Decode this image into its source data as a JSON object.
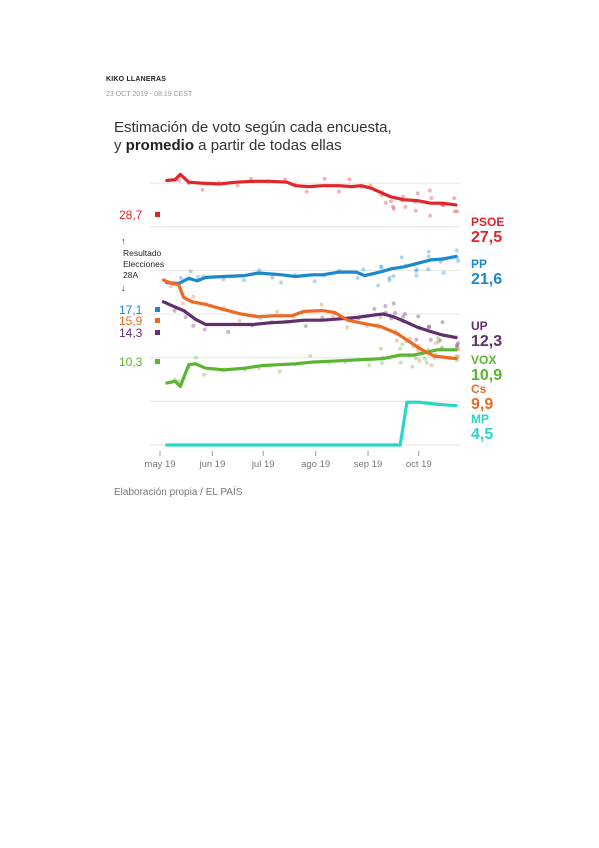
{
  "header": {
    "author": "KIKO LLANERAS",
    "timestamp": "23 OCT 2019 - 08:19 CEST"
  },
  "title": {
    "line1": "Estimación de voto según cada encuesta,",
    "line2_pre": "y ",
    "line2_bold": "promedio",
    "line2_post": " a partir de todas ellas"
  },
  "credit": "Elaboración propia / EL PAÍS",
  "election_note": {
    "arrow_up": "↑",
    "lines": [
      "Resultado",
      "Elecciones",
      "28A"
    ],
    "arrow_down": "↓"
  },
  "chart_data": {
    "type": "line",
    "x_axis": {
      "ticks": [
        "may 19",
        "jun 19",
        "jul 19",
        "ago 19",
        "sep 19",
        "oct 19"
      ],
      "tick_dates": [
        "2019-05-01",
        "2019-06-01",
        "2019-07-01",
        "2019-08-01",
        "2019-09-01",
        "2019-10-01"
      ],
      "range": [
        "2019-05-01",
        "2019-10-23"
      ]
    },
    "y_range": [
      0,
      31.5
    ],
    "grid": true,
    "series": [
      {
        "name": "PSOE",
        "color": "#e0262b",
        "election": "28,7",
        "election_value": 28.7,
        "latest": "27,5",
        "points": [
          [
            "2019-05-05",
            30.3
          ],
          [
            "2019-05-10",
            30.4
          ],
          [
            "2019-05-13",
            31.0
          ],
          [
            "2019-05-18",
            30.1
          ],
          [
            "2019-05-25",
            30.0
          ],
          [
            "2019-06-05",
            29.9
          ],
          [
            "2019-06-15",
            30.1
          ],
          [
            "2019-06-25",
            30.2
          ],
          [
            "2019-07-05",
            30.2
          ],
          [
            "2019-07-15",
            30.1
          ],
          [
            "2019-07-20",
            29.7
          ],
          [
            "2019-07-28",
            29.6
          ],
          [
            "2019-08-05",
            29.7
          ],
          [
            "2019-08-15",
            29.7
          ],
          [
            "2019-08-22",
            29.6
          ],
          [
            "2019-08-28",
            29.7
          ],
          [
            "2019-09-03",
            29.4
          ],
          [
            "2019-09-10",
            28.8
          ],
          [
            "2019-09-15",
            28.4
          ],
          [
            "2019-09-22",
            28.1
          ],
          [
            "2019-09-30",
            28.0
          ],
          [
            "2019-10-08",
            27.7
          ],
          [
            "2019-10-15",
            27.7
          ],
          [
            "2019-10-23",
            27.5
          ]
        ]
      },
      {
        "name": "PP",
        "color": "#1c88cd",
        "election": "17,1",
        "election_value": 17.1,
        "latest": "21,6",
        "points": [
          [
            "2019-05-05",
            18.6
          ],
          [
            "2019-05-12",
            18.5
          ],
          [
            "2019-05-18",
            19.1
          ],
          [
            "2019-05-23",
            18.8
          ],
          [
            "2019-05-28",
            19.2
          ],
          [
            "2019-06-08",
            19.3
          ],
          [
            "2019-06-20",
            19.4
          ],
          [
            "2019-06-28",
            19.7
          ],
          [
            "2019-07-05",
            19.6
          ],
          [
            "2019-07-12",
            19.5
          ],
          [
            "2019-07-20",
            19.3
          ],
          [
            "2019-07-30",
            19.5
          ],
          [
            "2019-08-05",
            19.5
          ],
          [
            "2019-08-15",
            19.8
          ],
          [
            "2019-08-25",
            19.8
          ],
          [
            "2019-08-30",
            19.4
          ],
          [
            "2019-09-08",
            19.8
          ],
          [
            "2019-09-15",
            20.2
          ],
          [
            "2019-09-22",
            20.4
          ],
          [
            "2019-09-30",
            20.8
          ],
          [
            "2019-10-08",
            21.2
          ],
          [
            "2019-10-15",
            21.3
          ],
          [
            "2019-10-23",
            21.6
          ]
        ]
      },
      {
        "name": "UP",
        "color": "#622e6d",
        "election": "14,3",
        "election_value": 14.3,
        "latest": "12,3",
        "points": [
          [
            "2019-05-03",
            16.4
          ],
          [
            "2019-05-10",
            15.8
          ],
          [
            "2019-05-15",
            15.4
          ],
          [
            "2019-05-22",
            14.4
          ],
          [
            "2019-05-28",
            13.8
          ],
          [
            "2019-06-10",
            13.8
          ],
          [
            "2019-06-25",
            13.8
          ],
          [
            "2019-07-05",
            14.0
          ],
          [
            "2019-07-15",
            14.1
          ],
          [
            "2019-07-25",
            14.3
          ],
          [
            "2019-08-05",
            14.3
          ],
          [
            "2019-08-12",
            14.4
          ],
          [
            "2019-08-25",
            14.6
          ],
          [
            "2019-09-05",
            14.9
          ],
          [
            "2019-09-10",
            15.0
          ],
          [
            "2019-09-16",
            14.7
          ],
          [
            "2019-09-22",
            14.2
          ],
          [
            "2019-09-30",
            13.5
          ],
          [
            "2019-10-08",
            13.0
          ],
          [
            "2019-10-15",
            12.6
          ],
          [
            "2019-10-23",
            12.3
          ]
        ]
      },
      {
        "name": "VOX",
        "color": "#5bb530",
        "election": "10,3",
        "election_value": 10.3,
        "latest": "10,9",
        "points": [
          [
            "2019-05-05",
            7.1
          ],
          [
            "2019-05-10",
            7.3
          ],
          [
            "2019-05-13",
            6.7
          ],
          [
            "2019-05-18",
            9.2
          ],
          [
            "2019-05-22",
            9.3
          ],
          [
            "2019-05-28",
            8.8
          ],
          [
            "2019-06-08",
            8.6
          ],
          [
            "2019-06-20",
            8.8
          ],
          [
            "2019-06-30",
            9.1
          ],
          [
            "2019-07-10",
            9.2
          ],
          [
            "2019-07-20",
            9.3
          ],
          [
            "2019-07-30",
            9.5
          ],
          [
            "2019-08-10",
            9.6
          ],
          [
            "2019-08-20",
            9.7
          ],
          [
            "2019-09-01",
            9.8
          ],
          [
            "2019-09-10",
            9.9
          ],
          [
            "2019-09-20",
            10.3
          ],
          [
            "2019-09-28",
            10.3
          ],
          [
            "2019-10-05",
            10.6
          ],
          [
            "2019-10-12",
            10.9
          ],
          [
            "2019-10-23",
            10.9
          ]
        ]
      },
      {
        "name": "Cs",
        "color": "#ec6a23",
        "election": "15,9",
        "election_value": 15.9,
        "latest": "9,9",
        "points": [
          [
            "2019-05-03",
            18.9
          ],
          [
            "2019-05-08",
            18.5
          ],
          [
            "2019-05-12",
            18.4
          ],
          [
            "2019-05-15",
            16.9
          ],
          [
            "2019-05-20",
            16.4
          ],
          [
            "2019-05-28",
            16.1
          ],
          [
            "2019-06-08",
            15.5
          ],
          [
            "2019-06-18",
            15.0
          ],
          [
            "2019-06-28",
            14.7
          ],
          [
            "2019-07-08",
            14.8
          ],
          [
            "2019-07-18",
            14.8
          ],
          [
            "2019-07-25",
            15.3
          ],
          [
            "2019-08-05",
            15.4
          ],
          [
            "2019-08-12",
            15.2
          ],
          [
            "2019-08-20",
            14.3
          ],
          [
            "2019-08-30",
            13.9
          ],
          [
            "2019-09-08",
            13.6
          ],
          [
            "2019-09-18",
            12.8
          ],
          [
            "2019-09-25",
            11.9
          ],
          [
            "2019-10-02",
            11.0
          ],
          [
            "2019-10-10",
            10.2
          ],
          [
            "2019-10-23",
            9.9
          ]
        ]
      },
      {
        "name": "MP",
        "color": "#2bd4c8",
        "election": null,
        "latest": "4,5",
        "points": [
          [
            "2019-05-05",
            0
          ],
          [
            "2019-06-01",
            0
          ],
          [
            "2019-07-01",
            0
          ],
          [
            "2019-08-01",
            0
          ],
          [
            "2019-09-01",
            0
          ],
          [
            "2019-09-20",
            0
          ],
          [
            "2019-09-24",
            4.9
          ],
          [
            "2019-10-01",
            4.9
          ],
          [
            "2019-10-10",
            4.7
          ],
          [
            "2019-10-23",
            4.5
          ]
        ]
      }
    ],
    "labels": [
      {
        "name": "PSOE",
        "value": "27,5"
      },
      {
        "name": "PP",
        "value": "21,6"
      },
      {
        "name": "UP",
        "value": "12,3"
      },
      {
        "name": "VOX",
        "value": "10,9"
      },
      {
        "name": "Cs",
        "value": "9,9"
      },
      {
        "name": "MP",
        "value": "4,5"
      }
    ]
  }
}
